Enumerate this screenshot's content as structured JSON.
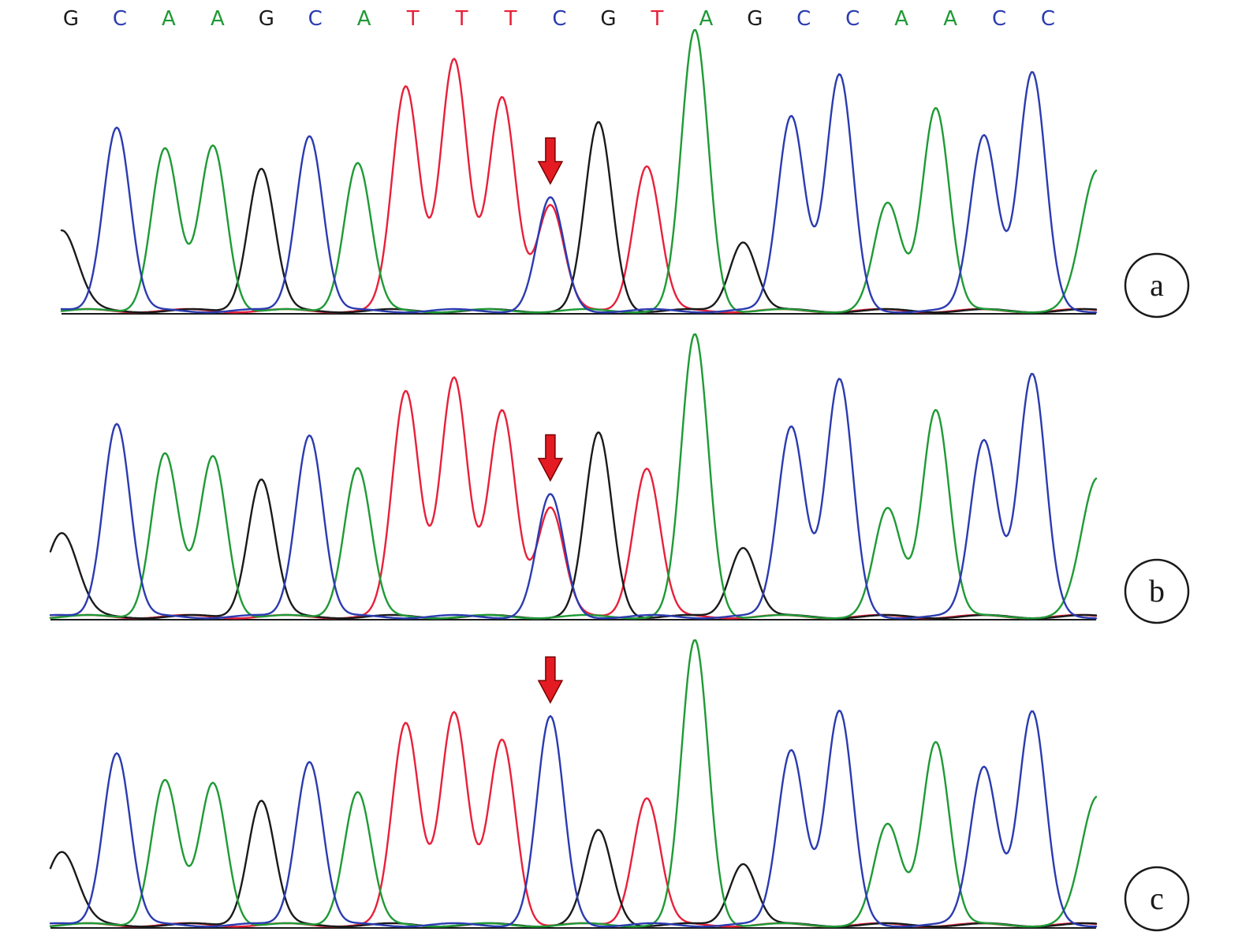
{
  "sequence": {
    "bases": [
      "G",
      "C",
      "A",
      "A",
      "G",
      "C",
      "A",
      "T",
      "T",
      "T",
      "C",
      "G",
      "T",
      "A",
      "G",
      "C",
      "C",
      "A",
      "A",
      "C",
      "C"
    ]
  },
  "colors": {
    "A": "#1f9a36",
    "C": "#2b3bb0",
    "G": "#1a1a1a",
    "T": "#e8203a",
    "arrow": "#e41b23",
    "arrow_outline": "#7a0000"
  },
  "markers": {
    "arrow_icon": "down-arrow-icon",
    "arrow_base_index": 10
  },
  "panels": [
    {
      "label": "a",
      "peaks": [
        {
          "base": "G",
          "pos": 0,
          "height": 0.29
        },
        {
          "base": "C",
          "pos": 1,
          "height": 0.66
        },
        {
          "base": "A",
          "pos": 2,
          "height": 0.58
        },
        {
          "base": "A",
          "pos": 3,
          "height": 0.59
        },
        {
          "base": "G",
          "pos": 4,
          "height": 0.51
        },
        {
          "base": "C",
          "pos": 5,
          "height": 0.63
        },
        {
          "base": "A",
          "pos": 6,
          "height": 0.53
        },
        {
          "base": "T",
          "pos": 7,
          "height": 0.8
        },
        {
          "base": "T",
          "pos": 8,
          "height": 0.9
        },
        {
          "base": "T",
          "pos": 9,
          "height": 0.76
        },
        {
          "base": "C",
          "pos": 10,
          "height": 0.4
        },
        {
          "base": "T",
          "pos": 10,
          "height": 0.38
        },
        {
          "base": "G",
          "pos": 11,
          "height": 0.67
        },
        {
          "base": "T",
          "pos": 12,
          "height": 0.52
        },
        {
          "base": "A",
          "pos": 13,
          "height": 1.0
        },
        {
          "base": "G",
          "pos": 14,
          "height": 0.25
        },
        {
          "base": "C",
          "pos": 15,
          "height": 0.7
        },
        {
          "base": "C",
          "pos": 16,
          "height": 0.84
        },
        {
          "base": "A",
          "pos": 17,
          "height": 0.38
        },
        {
          "base": "A",
          "pos": 18,
          "height": 0.73
        },
        {
          "base": "C",
          "pos": 19,
          "height": 0.63
        },
        {
          "base": "C",
          "pos": 20,
          "height": 0.85
        },
        {
          "base": "A",
          "pos": 21,
          "height": 0.5
        }
      ]
    },
    {
      "label": "b",
      "peaks": [
        {
          "base": "G",
          "pos": 0,
          "height": 0.3
        },
        {
          "base": "C",
          "pos": 1,
          "height": 0.69
        },
        {
          "base": "A",
          "pos": 2,
          "height": 0.58
        },
        {
          "base": "A",
          "pos": 3,
          "height": 0.57
        },
        {
          "base": "G",
          "pos": 4,
          "height": 0.49
        },
        {
          "base": "C",
          "pos": 5,
          "height": 0.65
        },
        {
          "base": "A",
          "pos": 6,
          "height": 0.53
        },
        {
          "base": "T",
          "pos": 7,
          "height": 0.8
        },
        {
          "base": "T",
          "pos": 8,
          "height": 0.85
        },
        {
          "base": "T",
          "pos": 9,
          "height": 0.73
        },
        {
          "base": "C",
          "pos": 10,
          "height": 0.43
        },
        {
          "base": "T",
          "pos": 10,
          "height": 0.39
        },
        {
          "base": "G",
          "pos": 11,
          "height": 0.65
        },
        {
          "base": "T",
          "pos": 12,
          "height": 0.53
        },
        {
          "base": "A",
          "pos": 13,
          "height": 1.0
        },
        {
          "base": "G",
          "pos": 14,
          "height": 0.25
        },
        {
          "base": "C",
          "pos": 15,
          "height": 0.68
        },
        {
          "base": "C",
          "pos": 16,
          "height": 0.84
        },
        {
          "base": "A",
          "pos": 17,
          "height": 0.38
        },
        {
          "base": "A",
          "pos": 18,
          "height": 0.74
        },
        {
          "base": "C",
          "pos": 19,
          "height": 0.63
        },
        {
          "base": "C",
          "pos": 20,
          "height": 0.86
        },
        {
          "base": "A",
          "pos": 21,
          "height": 0.49
        }
      ]
    },
    {
      "label": "c",
      "peaks": [
        {
          "base": "G",
          "pos": 0,
          "height": 0.26
        },
        {
          "base": "C",
          "pos": 1,
          "height": 0.61
        },
        {
          "base": "A",
          "pos": 2,
          "height": 0.51
        },
        {
          "base": "A",
          "pos": 3,
          "height": 0.5
        },
        {
          "base": "G",
          "pos": 4,
          "height": 0.44
        },
        {
          "base": "C",
          "pos": 5,
          "height": 0.58
        },
        {
          "base": "A",
          "pos": 6,
          "height": 0.47
        },
        {
          "base": "T",
          "pos": 7,
          "height": 0.71
        },
        {
          "base": "T",
          "pos": 8,
          "height": 0.75
        },
        {
          "base": "T",
          "pos": 9,
          "height": 0.65
        },
        {
          "base": "C",
          "pos": 10,
          "height": 0.73
        },
        {
          "base": "G",
          "pos": 11,
          "height": 0.33
        },
        {
          "base": "T",
          "pos": 12,
          "height": 0.45
        },
        {
          "base": "A",
          "pos": 13,
          "height": 1.0
        },
        {
          "base": "G",
          "pos": 14,
          "height": 0.22
        },
        {
          "base": "C",
          "pos": 15,
          "height": 0.62
        },
        {
          "base": "C",
          "pos": 16,
          "height": 0.75
        },
        {
          "base": "A",
          "pos": 17,
          "height": 0.35
        },
        {
          "base": "A",
          "pos": 18,
          "height": 0.65
        },
        {
          "base": "C",
          "pos": 19,
          "height": 0.56
        },
        {
          "base": "C",
          "pos": 20,
          "height": 0.75
        },
        {
          "base": "A",
          "pos": 21,
          "height": 0.45
        }
      ]
    }
  ]
}
